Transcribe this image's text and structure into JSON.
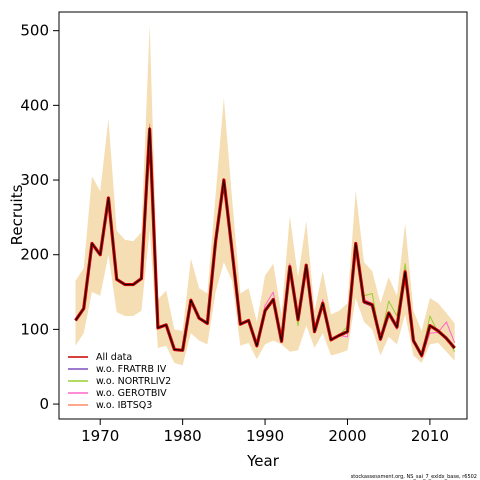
{
  "chart_data": {
    "type": "line",
    "xlabel": "Year",
    "ylabel": "Recruits",
    "xlim": [
      1965,
      2014.5
    ],
    "ylim": [
      -20,
      525
    ],
    "xticks": [
      1970,
      1980,
      1990,
      2000,
      2010
    ],
    "yticks": [
      0,
      100,
      200,
      300,
      400,
      500
    ],
    "grid": false,
    "legend_position": "bottom-left",
    "credit": "stockassessment.org, NS_sai_7_exldx_base, r6502",
    "x": [
      1967,
      1968,
      1969,
      1970,
      1971,
      1972,
      1973,
      1974,
      1975,
      1976,
      1977,
      1978,
      1979,
      1980,
      1981,
      1982,
      1983,
      1984,
      1985,
      1986,
      1987,
      1988,
      1989,
      1990,
      1991,
      1992,
      1993,
      1994,
      1995,
      1996,
      1997,
      1998,
      1999,
      2000,
      2001,
      2002,
      2003,
      2004,
      2005,
      2006,
      2007,
      2008,
      2009,
      2010,
      2011,
      2012,
      2013
    ],
    "band": {
      "color": "#f5deb3",
      "lower": [
        78,
        95,
        150,
        145,
        200,
        123,
        118,
        118,
        125,
        233,
        75,
        78,
        55,
        52,
        95,
        85,
        80,
        150,
        190,
        165,
        78,
        82,
        60,
        80,
        85,
        80,
        70,
        72,
        105,
        75,
        95,
        65,
        68,
        72,
        142,
        110,
        100,
        65,
        90,
        80,
        120,
        65,
        55,
        80,
        82,
        70,
        58
      ],
      "upper": [
        165,
        182,
        305,
        285,
        382,
        232,
        220,
        218,
        230,
        508,
        140,
        152,
        100,
        98,
        195,
        155,
        148,
        280,
        410,
        275,
        148,
        155,
        110,
        172,
        188,
        120,
        252,
        170,
        245,
        125,
        178,
        120,
        125,
        135,
        286,
        190,
        178,
        135,
        170,
        145,
        242,
        125,
        98,
        142,
        135,
        122,
        108
      ]
    },
    "series": [
      {
        "name": "All data",
        "color": "#cc0000",
        "values": [
          112,
          128,
          215,
          200,
          276,
          167,
          160,
          160,
          168,
          368,
          102,
          106,
          73,
          72,
          139,
          115,
          108,
          218,
          300,
          205,
          107,
          112,
          78,
          125,
          140,
          84,
          184,
          113,
          186,
          97,
          135,
          86,
          92,
          97,
          215,
          137,
          133,
          87,
          122,
          103,
          177,
          85,
          65,
          105,
          98,
          88,
          75
        ]
      },
      {
        "name": "w.o. FRATRB IV",
        "color": "#7b4fc0",
        "values": [
          112,
          128,
          214,
          200,
          276,
          167,
          160,
          160,
          168,
          368,
          102,
          106,
          73,
          72,
          139,
          115,
          108,
          218,
          300,
          205,
          107,
          112,
          78,
          125,
          140,
          84,
          186,
          115,
          186,
          97,
          135,
          86,
          92,
          97,
          213,
          135,
          131,
          87,
          120,
          105,
          180,
          85,
          65,
          105,
          97,
          88,
          77
        ]
      },
      {
        "name": "w.o. NORTRLIV2",
        "color": "#9acd32",
        "values": [
          112,
          128,
          215,
          200,
          276,
          167,
          160,
          160,
          168,
          368,
          102,
          106,
          73,
          72,
          139,
          115,
          108,
          218,
          300,
          205,
          107,
          112,
          78,
          125,
          140,
          84,
          175,
          105,
          186,
          97,
          135,
          86,
          92,
          104,
          208,
          145,
          148,
          87,
          138,
          118,
          188,
          85,
          65,
          118,
          95,
          90,
          70
        ]
      },
      {
        "name": "w.o. GEROTBIV",
        "color": "#ff66cc",
        "values": [
          112,
          128,
          215,
          200,
          276,
          167,
          160,
          160,
          168,
          368,
          102,
          106,
          73,
          72,
          139,
          115,
          108,
          218,
          300,
          205,
          107,
          112,
          78,
          132,
          150,
          86,
          188,
          114,
          186,
          97,
          140,
          86,
          92,
          90,
          215,
          140,
          135,
          85,
          118,
          100,
          168,
          85,
          62,
          95,
          96,
          110,
          82
        ]
      },
      {
        "name": "w.o. IBTSQ3",
        "color": "#ff8c69",
        "values": [
          112,
          128,
          215,
          200,
          276,
          167,
          160,
          160,
          168,
          375,
          102,
          106,
          73,
          72,
          139,
          115,
          108,
          218,
          302,
          205,
          107,
          112,
          78,
          125,
          140,
          84,
          184,
          113,
          186,
          97,
          135,
          86,
          92,
          97,
          215,
          137,
          133,
          87,
          122,
          103,
          177,
          85,
          65,
          105,
          98,
          88,
          75
        ]
      }
    ],
    "main_line": {
      "color": "#000000",
      "values": [
        112,
        128,
        215,
        200,
        276,
        167,
        160,
        160,
        168,
        370,
        102,
        106,
        73,
        72,
        139,
        115,
        108,
        218,
        300,
        205,
        107,
        112,
        78,
        125,
        140,
        84,
        184,
        113,
        186,
        97,
        135,
        86,
        92,
        97,
        215,
        137,
        133,
        87,
        122,
        103,
        177,
        85,
        65,
        105,
        98,
        88,
        75
      ]
    }
  }
}
